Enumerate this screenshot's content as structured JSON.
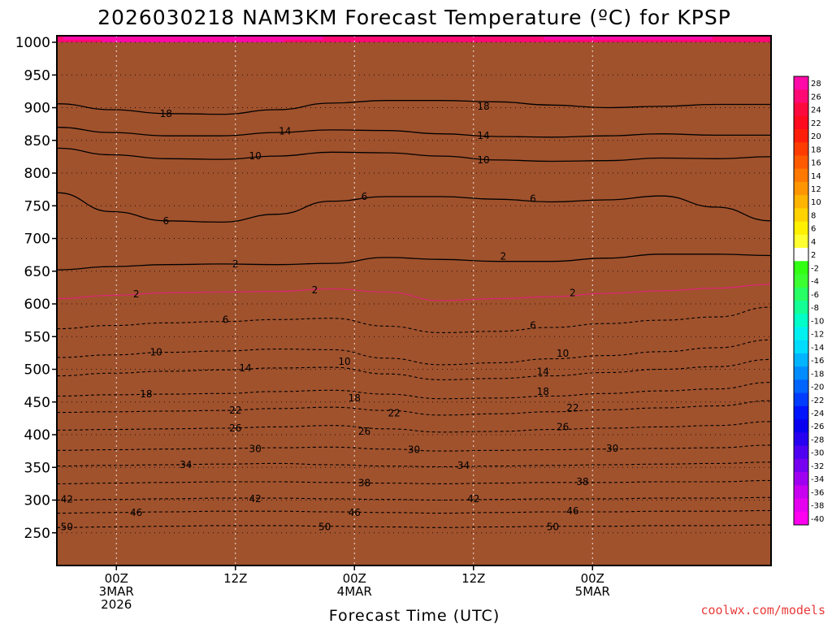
{
  "chart_data": {
    "type": "heatmap",
    "title": "2026030218 NAM3KM Forecast Temperature (ºC) for KPSP",
    "xlabel": "Forecast Time (UTC)",
    "ylabel": "",
    "credit": "coolwx.com/models",
    "x_range_hours": [
      -6,
      66
    ],
    "x_ticks": [
      {
        "hour": 0,
        "lines": [
          "00Z",
          "3MAR",
          "2026"
        ]
      },
      {
        "hour": 12,
        "lines": [
          "12Z"
        ]
      },
      {
        "hour": 24,
        "lines": [
          "00Z",
          "4MAR"
        ]
      },
      {
        "hour": 36,
        "lines": [
          "12Z"
        ]
      },
      {
        "hour": 48,
        "lines": [
          "00Z",
          "5MAR"
        ]
      }
    ],
    "y_range_hpa": [
      1010,
      200
    ],
    "y_ticks": [
      250,
      300,
      350,
      400,
      450,
      500,
      550,
      600,
      650,
      700,
      750,
      800,
      850,
      900,
      950,
      1000
    ],
    "ground_level_hpa": 1000,
    "colorbar": {
      "levels": [
        28,
        26,
        24,
        22,
        20,
        18,
        16,
        14,
        12,
        10,
        8,
        6,
        4,
        2,
        -2,
        -4,
        -6,
        -8,
        -10,
        -12,
        -14,
        -16,
        -18,
        -20,
        -22,
        -24,
        -26,
        -28,
        -30,
        -32,
        -34,
        -36,
        -38,
        -40
      ],
      "colors": [
        "#ff0aa8",
        "#ff0a74",
        "#ff0a3e",
        "#ff0a1e",
        "#ff1e0a",
        "#ff3c00",
        "#ff5a00",
        "#ff7800",
        "#ff9600",
        "#ffb400",
        "#ffd200",
        "#fff000",
        "#ffff32",
        "#ffffff",
        "#32ff14",
        "#3cff32",
        "#28ff64",
        "#14ff96",
        "#00ffc8",
        "#00f0f0",
        "#00dcff",
        "#00b4ff",
        "#008cff",
        "#0064ff",
        "#003cff",
        "#0014ff",
        "#0a00f0",
        "#2800f0",
        "#5000f0",
        "#7800f0",
        "#a000f0",
        "#c800f0",
        "#e600f0",
        "#ff00f0"
      ]
    },
    "contours": [
      {
        "value": 18,
        "pressures": [
          906,
          897,
          891,
          890,
          897,
          907,
          911,
          911,
          909,
          904,
          900,
          902,
          905,
          905
        ]
      },
      {
        "value": 14,
        "pressures": [
          870,
          862,
          857,
          857,
          862,
          866,
          865,
          860,
          856,
          855,
          857,
          860,
          858,
          858
        ]
      },
      {
        "value": 10,
        "pressures": [
          838,
          828,
          822,
          821,
          826,
          832,
          831,
          826,
          820,
          818,
          819,
          823,
          822,
          825
        ]
      },
      {
        "value": 6,
        "pressures": [
          770,
          741,
          727,
          725,
          737,
          757,
          764,
          764,
          760,
          756,
          759,
          765,
          748,
          727
        ]
      },
      {
        "value": 2,
        "pressures": [
          652,
          657,
          660,
          661,
          660,
          662,
          671,
          668,
          665,
          665,
          670,
          676,
          676,
          674
        ]
      },
      {
        "value": -2,
        "pressures": [
          608,
          613,
          617,
          618,
          619,
          623,
          618,
          605,
          608,
          611,
          616,
          620,
          624,
          630
        ]
      },
      {
        "value": -6,
        "pressures": [
          562,
          567,
          571,
          573,
          576,
          578,
          566,
          556,
          558,
          564,
          570,
          575,
          580,
          595
        ]
      },
      {
        "value": -10,
        "pressures": [
          518,
          522,
          526,
          528,
          531,
          530,
          517,
          507,
          510,
          516,
          521,
          527,
          533,
          545
        ]
      },
      {
        "value": -14,
        "pressures": [
          490,
          494,
          497,
          499,
          502,
          503,
          493,
          484,
          486,
          490,
          495,
          500,
          504,
          515
        ]
      },
      {
        "value": -18,
        "pressures": [
          459,
          461,
          462,
          463,
          466,
          468,
          462,
          455,
          456,
          459,
          463,
          467,
          470,
          480
        ]
      },
      {
        "value": -22,
        "pressures": [
          434,
          435,
          436,
          437,
          440,
          442,
          437,
          430,
          432,
          435,
          438,
          441,
          444,
          452
        ]
      },
      {
        "value": -26,
        "pressures": [
          407,
          408,
          409,
          410,
          412,
          414,
          409,
          404,
          405,
          408,
          410,
          412,
          414,
          420
        ]
      },
      {
        "value": -30,
        "pressures": [
          376,
          377,
          378,
          379,
          380,
          381,
          378,
          375,
          376,
          377,
          378,
          379,
          380,
          384
        ]
      },
      {
        "value": -34,
        "pressures": [
          352,
          353,
          354,
          355,
          356,
          354,
          352,
          351,
          352,
          353,
          354,
          355,
          356,
          358
        ]
      },
      {
        "value": -38,
        "pressures": [
          325,
          326,
          327,
          328,
          328,
          327,
          326,
          325,
          326,
          327,
          327,
          328,
          328,
          330
        ]
      },
      {
        "value": -42,
        "pressures": [
          300,
          301,
          302,
          303,
          303,
          302,
          301,
          300,
          301,
          302,
          302,
          303,
          303,
          304
        ]
      },
      {
        "value": -46,
        "pressures": [
          280,
          281,
          282,
          283,
          283,
          282,
          281,
          280,
          281,
          282,
          282,
          283,
          283,
          284
        ]
      },
      {
        "value": -50,
        "pressures": [
          258,
          259,
          260,
          261,
          261,
          260,
          259,
          258,
          259,
          260,
          260,
          261,
          261,
          262
        ]
      }
    ],
    "contour_labels": [
      {
        "text": "50",
        "hour": -5,
        "hpa": 259,
        "dark": true
      },
      {
        "text": "50",
        "hour": 21,
        "hpa": 259,
        "dark": true
      },
      {
        "text": "50",
        "hour": 44,
        "hpa": 259,
        "dark": true
      },
      {
        "text": "46",
        "hour": 2,
        "hpa": 281,
        "dark": true
      },
      {
        "text": "46",
        "hour": 24,
        "hpa": 281,
        "dark": true
      },
      {
        "text": "46",
        "hour": 46,
        "hpa": 283,
        "dark": true
      },
      {
        "text": "42",
        "hour": -5,
        "hpa": 301,
        "dark": true
      },
      {
        "text": "42",
        "hour": 14,
        "hpa": 302,
        "dark": true
      },
      {
        "text": "42",
        "hour": 36,
        "hpa": 302,
        "dark": true
      },
      {
        "text": "38",
        "hour": 25,
        "hpa": 326,
        "dark": true
      },
      {
        "text": "38",
        "hour": 47,
        "hpa": 328,
        "dark": true
      },
      {
        "text": "34",
        "hour": 7,
        "hpa": 354,
        "dark": true
      },
      {
        "text": "34",
        "hour": 35,
        "hpa": 353,
        "dark": true
      },
      {
        "text": "30",
        "hour": 14,
        "hpa": 378,
        "dark": true
      },
      {
        "text": "30",
        "hour": 30,
        "hpa": 377,
        "dark": true
      },
      {
        "text": "30",
        "hour": 50,
        "hpa": 379,
        "dark": true
      },
      {
        "text": "26",
        "hour": 12,
        "hpa": 410,
        "dark": true
      },
      {
        "text": "26",
        "hour": 25,
        "hpa": 405,
        "dark": true
      },
      {
        "text": "26",
        "hour": 45,
        "hpa": 412,
        "dark": true
      },
      {
        "text": "22",
        "hour": 12,
        "hpa": 437,
        "dark": true
      },
      {
        "text": "22",
        "hour": 28,
        "hpa": 433,
        "dark": true
      },
      {
        "text": "22",
        "hour": 46,
        "hpa": 441,
        "dark": true
      },
      {
        "text": "18",
        "hour": 3,
        "hpa": 462,
        "dark": true
      },
      {
        "text": "18",
        "hour": 24,
        "hpa": 456,
        "dark": true
      },
      {
        "text": "18",
        "hour": 43,
        "hpa": 466,
        "dark": true
      },
      {
        "text": "14",
        "hour": 13,
        "hpa": 502,
        "dark": true
      },
      {
        "text": "14",
        "hour": 43,
        "hpa": 496,
        "dark": true
      },
      {
        "text": "10",
        "hour": 4,
        "hpa": 526,
        "dark": true
      },
      {
        "text": "10",
        "hour": 23,
        "hpa": 512,
        "dark": true
      },
      {
        "text": "10",
        "hour": 45,
        "hpa": 524,
        "dark": true
      },
      {
        "text": "6",
        "hour": 11,
        "hpa": 576,
        "dark": true
      },
      {
        "text": "6",
        "hour": 42,
        "hpa": 567,
        "dark": true
      },
      {
        "text": "2",
        "hour": 2,
        "hpa": 615,
        "dark": true
      },
      {
        "text": "2",
        "hour": 20,
        "hpa": 621,
        "dark": true
      },
      {
        "text": "2",
        "hour": 46,
        "hpa": 617,
        "dark": true
      },
      {
        "text": "2",
        "hour": 12,
        "hpa": 661,
        "dark": false
      },
      {
        "text": "2",
        "hour": 39,
        "hpa": 673,
        "dark": false
      },
      {
        "text": "6",
        "hour": 5,
        "hpa": 727,
        "dark": false
      },
      {
        "text": "6",
        "hour": 25,
        "hpa": 764,
        "dark": false
      },
      {
        "text": "6",
        "hour": 42,
        "hpa": 761,
        "dark": false
      },
      {
        "text": "10",
        "hour": 14,
        "hpa": 826,
        "dark": false
      },
      {
        "text": "10",
        "hour": 37,
        "hpa": 820,
        "dark": false
      },
      {
        "text": "14",
        "hour": 17,
        "hpa": 864,
        "dark": false
      },
      {
        "text": "14",
        "hour": 37,
        "hpa": 857,
        "dark": false
      },
      {
        "text": "18",
        "hour": 5,
        "hpa": 891,
        "dark": false
      },
      {
        "text": "18",
        "hour": 37,
        "hpa": 902,
        "dark": false
      }
    ]
  }
}
